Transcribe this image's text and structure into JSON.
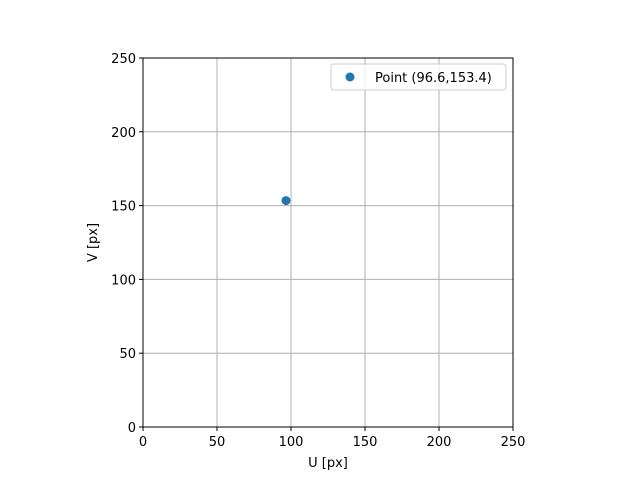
{
  "chart_data": {
    "type": "scatter",
    "title": "",
    "xlabel": "U [px]",
    "ylabel": "V [px]",
    "xlim": [
      0,
      250
    ],
    "ylim": [
      0,
      250
    ],
    "xticks": [
      0,
      50,
      100,
      150,
      200,
      250
    ],
    "yticks": [
      0,
      50,
      100,
      150,
      200,
      250
    ],
    "grid": true,
    "legend_position": "top-right",
    "series": [
      {
        "name": "Point (96.6,153.4)",
        "color": "#1f77b4",
        "points": [
          {
            "x": 96.6,
            "y": 153.4
          }
        ]
      }
    ]
  }
}
